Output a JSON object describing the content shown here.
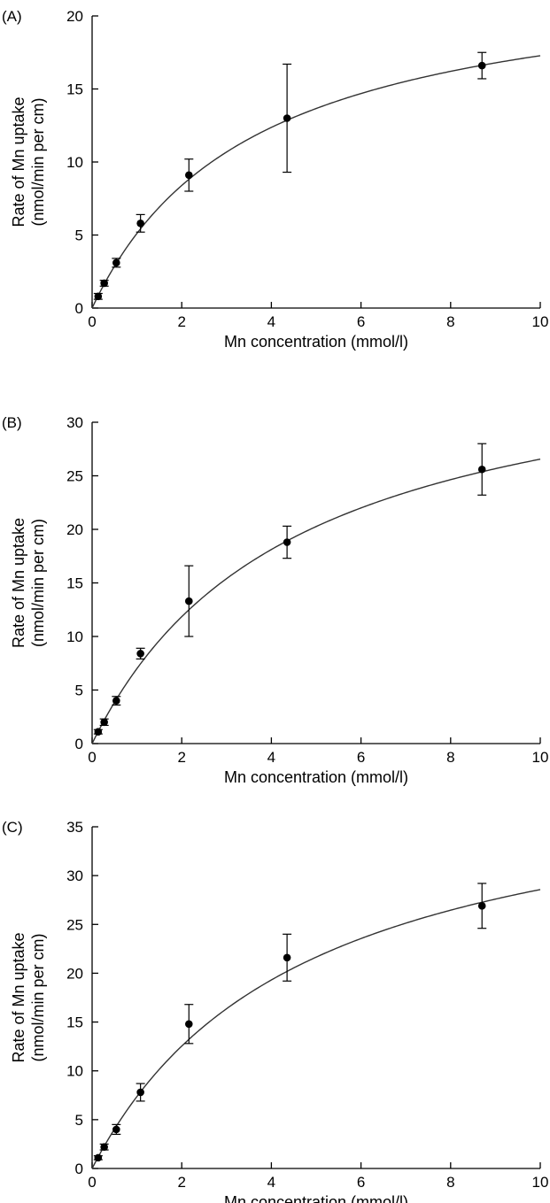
{
  "chart_data": [
    {
      "type": "scatter",
      "panel_label": "(A)",
      "xlabel": "Mn concentration (mmol/l)",
      "ylabel": [
        "Rate of Mn uptake",
        "(nmol/min per cm)"
      ],
      "xlim": [
        0,
        10
      ],
      "ylim": [
        0,
        20
      ],
      "xticks": [
        0,
        2,
        4,
        6,
        8,
        10
      ],
      "yticks": [
        0,
        5,
        10,
        15,
        20
      ],
      "grid": false,
      "points": [
        {
          "x": 0.135,
          "y": 0.8,
          "err": 0.2
        },
        {
          "x": 0.27,
          "y": 1.7,
          "err": 0.2
        },
        {
          "x": 0.54,
          "y": 3.1,
          "err": 0.3
        },
        {
          "x": 1.08,
          "y": 5.8,
          "err": 0.6
        },
        {
          "x": 2.16,
          "y": 9.1,
          "err": 1.1
        },
        {
          "x": 4.35,
          "y": 13.0,
          "err": 3.7
        },
        {
          "x": 8.7,
          "y": 16.6,
          "err": 0.9
        }
      ],
      "fit": {
        "model": "michaelis-menten",
        "vmax": 23.5,
        "km": 3.6
      }
    },
    {
      "type": "scatter",
      "panel_label": "(B)",
      "xlabel": "Mn concentration (mmol/l)",
      "ylabel": [
        "Rate of Mn uptake",
        "(nmol/min per cm)"
      ],
      "xlim": [
        0,
        10
      ],
      "ylim": [
        0,
        30
      ],
      "xticks": [
        0,
        2,
        4,
        6,
        8,
        10
      ],
      "yticks": [
        0,
        5,
        10,
        15,
        20,
        25,
        30
      ],
      "grid": false,
      "points": [
        {
          "x": 0.135,
          "y": 1.1,
          "err": 0.2
        },
        {
          "x": 0.27,
          "y": 2.0,
          "err": 0.3
        },
        {
          "x": 0.54,
          "y": 4.0,
          "err": 0.4
        },
        {
          "x": 1.08,
          "y": 8.4,
          "err": 0.5
        },
        {
          "x": 2.16,
          "y": 13.3,
          "err": 3.3
        },
        {
          "x": 4.35,
          "y": 18.8,
          "err": 1.5
        },
        {
          "x": 8.7,
          "y": 25.6,
          "err": 2.4
        }
      ],
      "fit": {
        "model": "michaelis-menten",
        "vmax": 38.5,
        "km": 4.5
      }
    },
    {
      "type": "scatter",
      "panel_label": "(C)",
      "xlabel": "Mn concentration (mmol/l)",
      "ylabel": [
        "Rate of Mn uptake",
        "(nmol/min per cm)"
      ],
      "xlim": [
        0,
        10
      ],
      "ylim": [
        0,
        35
      ],
      "xticks": [
        0,
        2,
        4,
        6,
        8,
        10
      ],
      "yticks": [
        0,
        5,
        10,
        15,
        20,
        25,
        30,
        35
      ],
      "grid": false,
      "points": [
        {
          "x": 0.135,
          "y": 1.1,
          "err": 0.2
        },
        {
          "x": 0.27,
          "y": 2.2,
          "err": 0.3
        },
        {
          "x": 0.54,
          "y": 4.0,
          "err": 0.5
        },
        {
          "x": 1.08,
          "y": 7.8,
          "err": 0.9
        },
        {
          "x": 2.16,
          "y": 14.8,
          "err": 2.0
        },
        {
          "x": 4.35,
          "y": 21.6,
          "err": 2.4
        },
        {
          "x": 8.7,
          "y": 26.9,
          "err": 2.3
        }
      ],
      "fit": {
        "model": "michaelis-menten",
        "vmax": 42.0,
        "km": 4.7
      }
    }
  ]
}
